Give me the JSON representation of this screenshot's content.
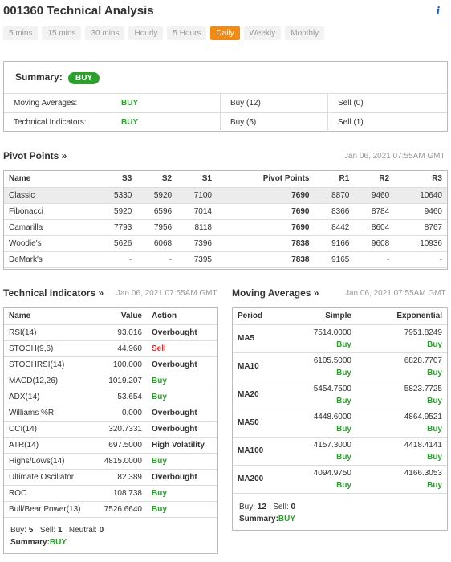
{
  "title": "001360 Technical Analysis",
  "info_icon": "info-icon",
  "tabs": [
    "5 mins",
    "15 mins",
    "30 mins",
    "Hourly",
    "5 Hours",
    "Daily",
    "Weekly",
    "Monthly"
  ],
  "active_tab": "Daily",
  "summary": {
    "label": "Summary:",
    "badge": "BUY",
    "rows": [
      {
        "name": "Moving Averages:",
        "signal": "BUY",
        "buy": "Buy",
        "buy_count": "(12)",
        "sell": "Sell",
        "sell_count": "(0)"
      },
      {
        "name": "Technical Indicators:",
        "signal": "BUY",
        "buy": "Buy",
        "buy_count": "(5)",
        "sell": "Sell",
        "sell_count": "(1)"
      }
    ]
  },
  "pivot": {
    "title": "Pivot Points »",
    "date": "Jan 06, 2021 07:55AM GMT",
    "headers": [
      "Name",
      "S3",
      "S2",
      "S1",
      "Pivot Points",
      "R1",
      "R2",
      "R3"
    ],
    "rows": [
      [
        "Classic",
        "5330",
        "5920",
        "7100",
        "7690",
        "8870",
        "9460",
        "10640"
      ],
      [
        "Fibonacci",
        "5920",
        "6596",
        "7014",
        "7690",
        "8366",
        "8784",
        "9460"
      ],
      [
        "Camarilla",
        "7793",
        "7956",
        "8118",
        "7690",
        "8442",
        "8604",
        "8767"
      ],
      [
        "Woodie's",
        "5626",
        "6068",
        "7396",
        "7838",
        "9166",
        "9608",
        "10936"
      ],
      [
        "DeMark's",
        "-",
        "-",
        "7395",
        "7838",
        "9165",
        "-",
        "-"
      ]
    ]
  },
  "indicators": {
    "title": "Technical Indicators »",
    "date": "Jan 06, 2021 07:55AM GMT",
    "headers": [
      "Name",
      "Value",
      "Action"
    ],
    "rows": [
      [
        "RSI(14)",
        "93.016",
        "Overbought"
      ],
      [
        "STOCH(9,6)",
        "44.960",
        "Sell"
      ],
      [
        "STOCHRSI(14)",
        "100.000",
        "Overbought"
      ],
      [
        "MACD(12,26)",
        "1019.207",
        "Buy"
      ],
      [
        "ADX(14)",
        "53.654",
        "Buy"
      ],
      [
        "Williams %R",
        "0.000",
        "Overbought"
      ],
      [
        "CCI(14)",
        "320.7331",
        "Overbought"
      ],
      [
        "ATR(14)",
        "697.5000",
        "High Volatility"
      ],
      [
        "Highs/Lows(14)",
        "4815.0000",
        "Buy"
      ],
      [
        "Ultimate Oscillator",
        "82.389",
        "Overbought"
      ],
      [
        "ROC",
        "108.738",
        "Buy"
      ],
      [
        "Bull/Bear Power(13)",
        "7526.6640",
        "Buy"
      ]
    ],
    "footer": {
      "buy_label": "Buy:",
      "buy": "5",
      "sell_label": "Sell:",
      "sell": "1",
      "neutral_label": "Neutral:",
      "neutral": "0",
      "summary_label": "Summary:",
      "summary": "BUY"
    }
  },
  "moving_averages": {
    "title": "Moving Averages »",
    "date": "Jan 06, 2021 07:55AM GMT",
    "headers": [
      "Period",
      "Simple",
      "Exponential"
    ],
    "rows": [
      {
        "period": "MA5",
        "simple": "7514.0000",
        "simple_action": "Buy",
        "exp": "7951.8249",
        "exp_action": "Buy"
      },
      {
        "period": "MA10",
        "simple": "6105.5000",
        "simple_action": "Buy",
        "exp": "6828.7707",
        "exp_action": "Buy"
      },
      {
        "period": "MA20",
        "simple": "5454.7500",
        "simple_action": "Buy",
        "exp": "5823.7725",
        "exp_action": "Buy"
      },
      {
        "period": "MA50",
        "simple": "4448.6000",
        "simple_action": "Buy",
        "exp": "4864.9521",
        "exp_action": "Buy"
      },
      {
        "period": "MA100",
        "simple": "4157.3000",
        "simple_action": "Buy",
        "exp": "4418.4141",
        "exp_action": "Buy"
      },
      {
        "period": "MA200",
        "simple": "4094.9750",
        "simple_action": "Buy",
        "exp": "4166.3053",
        "exp_action": "Buy"
      }
    ],
    "footer": {
      "buy_label": "Buy:",
      "buy": "12",
      "sell_label": "Sell:",
      "sell": "0",
      "summary_label": "Summary:",
      "summary": "BUY"
    }
  },
  "colors": {
    "accent": "#f08c16",
    "buy": "#2ca02c",
    "sell": "#d62728"
  }
}
